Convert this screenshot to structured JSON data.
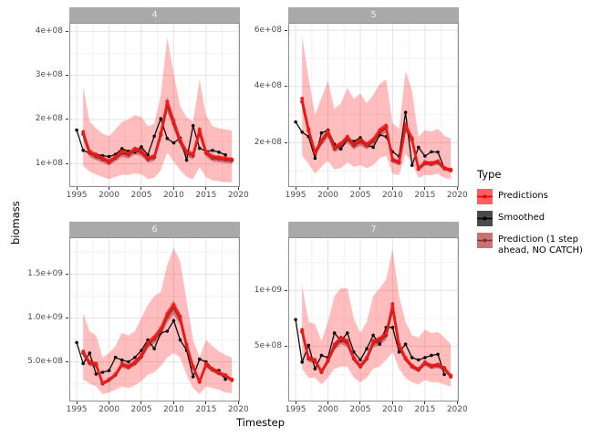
{
  "figure": {
    "ylabel": "biomass",
    "xlabel": "Timestep"
  },
  "style": {
    "background": "#ffffff",
    "panel_border": "#8f8f8f",
    "strip_bg": "#a9a9a9",
    "strip_text": "#ededed",
    "grid_major": "#e3e3e3",
    "grid_minor": "#f2f2f2",
    "tick_color": "#333333",
    "tick_label_color": "#4d4d4d",
    "ribbon_fill": "rgba(255,0,0,0.26)",
    "ribbon2_fill": "rgba(170,22,22,0.45)",
    "predictions_color": "#ff1414",
    "smoothed_color": "#0d0d0d",
    "pred1step_color": "#a12d2d"
  },
  "legend": {
    "title": "Type",
    "entries": [
      {
        "label": "Predictions",
        "fill": "#fb5f5f",
        "line": "#e60000"
      },
      {
        "label": "Smoothed",
        "fill": "#4a4a4a",
        "line": "#000000"
      },
      {
        "label": "Prediction (1 step\n ahead, NO CATCH)",
        "fill": "#c87472",
        "line": "#8b2a2a"
      }
    ]
  },
  "chart_data": [
    {
      "facet": "4",
      "type": "line",
      "xlim": [
        1994.0,
        2020.1
      ],
      "ylim": [
        49000000.0,
        417000000.0
      ],
      "x_ticks": [
        {
          "v": 1995,
          "label": "1995"
        },
        {
          "v": 2000,
          "label": "2000"
        },
        {
          "v": 2005,
          "label": "2005"
        },
        {
          "v": 2010,
          "label": "2010"
        },
        {
          "v": 2015,
          "label": "2015"
        },
        {
          "v": 2020,
          "label": "2020"
        }
      ],
      "y_ticks": [
        {
          "v": 400000000.0,
          "label": "4e+08"
        },
        {
          "v": 300000000.0,
          "label": "3e+08"
        },
        {
          "v": 200000000.0,
          "label": "2e+08"
        },
        {
          "v": 100000000.0,
          "label": "1e+08"
        }
      ],
      "x_minor": [
        1997.5,
        2002.5,
        2007.5,
        2012.5,
        2017.5
      ],
      "y_minor": [
        50000000.0,
        150000000.0,
        250000000.0,
        350000000.0
      ],
      "series": {
        "smoothed": {
          "x_start": 1995,
          "y": [
            176000000.0,
            130000000.0,
            124000000.0,
            121000000.0,
            118000000.0,
            116000000.0,
            121000000.0,
            134000000.0,
            128000000.0,
            126000000.0,
            138000000.0,
            120000000.0,
            162000000.0,
            202000000.0,
            157000000.0,
            147000000.0,
            158000000.0,
            108000000.0,
            186000000.0,
            135000000.0,
            128000000.0,
            130000000.0,
            126000000.0,
            120000000.0
          ]
        },
        "predictions": {
          "x_start": 1996,
          "y": [
            172000000.0,
            128000000.0,
            120000000.0,
            113000000.0,
            106000000.0,
            116000000.0,
            128000000.0,
            124000000.0,
            134000000.0,
            130000000.0,
            113000000.0,
            117000000.0,
            170000000.0,
            241000000.0,
            198000000.0,
            155000000.0,
            128000000.0,
            122000000.0,
            178000000.0,
            128000000.0,
            116000000.0,
            114000000.0,
            112000000.0,
            110000000.0
          ]
        },
        "pred_1step": {
          "x_start": 1996,
          "y": [
            167000000.0,
            124000000.0,
            116000000.0,
            110000000.0,
            103000000.0,
            113000000.0,
            124000000.0,
            120000000.0,
            130000000.0,
            126000000.0,
            110000000.0,
            114000000.0,
            165000000.0,
            234000000.0,
            192000000.0,
            150000000.0,
            124000000.0,
            118000000.0,
            173000000.0,
            124000000.0,
            113000000.0,
            111000000.0,
            109000000.0,
            107000000.0
          ]
        }
      },
      "ribbon": {
        "x_start": 1996,
        "lower": [
          95000000.0,
          82000000.0,
          75000000.0,
          70000000.0,
          65000000.0,
          70000000.0,
          75000000.0,
          74000000.0,
          78000000.0,
          76000000.0,
          65000000.0,
          68000000.0,
          85000000.0,
          125000000.0,
          105000000.0,
          85000000.0,
          70000000.0,
          65000000.0,
          92000000.0,
          70000000.0,
          62000000.0,
          60000000.0,
          58000000.0,
          58000000.0
        ],
        "upper": [
          275000000.0,
          195000000.0,
          180000000.0,
          168000000.0,
          162000000.0,
          178000000.0,
          195000000.0,
          200000000.0,
          210000000.0,
          205000000.0,
          185000000.0,
          190000000.0,
          255000000.0,
          385000000.0,
          305000000.0,
          230000000.0,
          205000000.0,
          195000000.0,
          290000000.0,
          210000000.0,
          185000000.0,
          180000000.0,
          178000000.0,
          175000000.0
        ]
      },
      "ribbon2_halfwidth_fraction": 0.07
    },
    {
      "facet": "5",
      "type": "line",
      "xlim": [
        1994.0,
        2020.1
      ],
      "ylim": [
        46000000.0,
        623000000.0
      ],
      "x_ticks": [
        {
          "v": 1995,
          "label": "1995"
        },
        {
          "v": 2000,
          "label": "2000"
        },
        {
          "v": 2005,
          "label": "2005"
        },
        {
          "v": 2010,
          "label": "2010"
        },
        {
          "v": 2015,
          "label": "2015"
        },
        {
          "v": 2020,
          "label": "2020"
        }
      ],
      "y_ticks": [
        {
          "v": 600000000.0,
          "label": "6e+08"
        },
        {
          "v": 400000000.0,
          "label": "4e+08"
        },
        {
          "v": 200000000.0,
          "label": "2e+08"
        }
      ],
      "x_minor": [
        1997.5,
        2002.5,
        2007.5,
        2012.5,
        2017.5
      ],
      "y_minor": [
        100000000.0,
        300000000.0,
        500000000.0
      ],
      "series": {
        "smoothed": {
          "x_start": 1995,
          "y": [
            274000000.0,
            238000000.0,
            222000000.0,
            145000000.0,
            235000000.0,
            245000000.0,
            195000000.0,
            178000000.0,
            212000000.0,
            205000000.0,
            218000000.0,
            192000000.0,
            184000000.0,
            228000000.0,
            222000000.0,
            168000000.0,
            152000000.0,
            308000000.0,
            120000000.0,
            184000000.0,
            153000000.0,
            168000000.0,
            167000000.0,
            108000000.0
          ]
        },
        "predictions": {
          "x_start": 1996,
          "y": [
            357000000.0,
            250000000.0,
            168000000.0,
            210000000.0,
            242000000.0,
            185000000.0,
            198000000.0,
            222000000.0,
            196000000.0,
            210000000.0,
            196000000.0,
            212000000.0,
            245000000.0,
            261000000.0,
            142000000.0,
            133000000.0,
            265000000.0,
            217000000.0,
            110000000.0,
            132000000.0,
            129000000.0,
            135000000.0,
            112000000.0,
            105000000.0
          ]
        },
        "pred_1step": {
          "x_start": 1996,
          "y": [
            346000000.0,
            243000000.0,
            163000000.0,
            204000000.0,
            235000000.0,
            179000000.0,
            192000000.0,
            215000000.0,
            190000000.0,
            204000000.0,
            190000000.0,
            206000000.0,
            238000000.0,
            253000000.0,
            138000000.0,
            129000000.0,
            257000000.0,
            211000000.0,
            107000000.0,
            128000000.0,
            125000000.0,
            131000000.0,
            109000000.0,
            102000000.0
          ]
        }
      },
      "ribbon": {
        "x_start": 1996,
        "lower": [
          155000000.0,
          125000000.0,
          90000000.0,
          115000000.0,
          135000000.0,
          105000000.0,
          110000000.0,
          130000000.0,
          115000000.0,
          120000000.0,
          110000000.0,
          120000000.0,
          145000000.0,
          155000000.0,
          90000000.0,
          85000000.0,
          160000000.0,
          130000000.0,
          75000000.0,
          85000000.0,
          85000000.0,
          90000000.0,
          75000000.0,
          70000000.0
        ],
        "upper": [
          580000000.0,
          430000000.0,
          300000000.0,
          360000000.0,
          420000000.0,
          320000000.0,
          340000000.0,
          395000000.0,
          355000000.0,
          375000000.0,
          340000000.0,
          370000000.0,
          410000000.0,
          425000000.0,
          270000000.0,
          250000000.0,
          455000000.0,
          385000000.0,
          220000000.0,
          245000000.0,
          240000000.0,
          250000000.0,
          225000000.0,
          215000000.0
        ]
      },
      "ribbon2_halfwidth_fraction": 0.07
    },
    {
      "facet": "6",
      "type": "line",
      "xlim": [
        1994.0,
        2020.1
      ],
      "ylim": [
        57000000.0,
        1912000000.0
      ],
      "x_ticks": [
        {
          "v": 1995,
          "label": "1995"
        },
        {
          "v": 2000,
          "label": "2000"
        },
        {
          "v": 2005,
          "label": "2005"
        },
        {
          "v": 2010,
          "label": "2010"
        },
        {
          "v": 2015,
          "label": "2015"
        },
        {
          "v": 2020,
          "label": "2020"
        }
      ],
      "y_ticks": [
        {
          "v": 1500000000.0,
          "label": "1.5e+09"
        },
        {
          "v": 1000000000.0,
          "label": "1.0e+09"
        },
        {
          "v": 500000000.0,
          "label": "5.0e+08"
        }
      ],
      "x_minor": [
        1997.5,
        2002.5,
        2007.5,
        2012.5,
        2017.5
      ],
      "y_minor": [
        250000000.0,
        750000000.0,
        1250000000.0,
        1750000000.0
      ],
      "series": {
        "smoothed": {
          "x_start": 1995,
          "y": [
            720000000.0,
            480000000.0,
            600000000.0,
            360000000.0,
            380000000.0,
            400000000.0,
            550000000.0,
            520000000.0,
            500000000.0,
            550000000.0,
            630000000.0,
            750000000.0,
            650000000.0,
            830000000.0,
            850000000.0,
            970000000.0,
            750000000.0,
            630000000.0,
            330000000.0,
            530000000.0,
            500000000.0,
            420000000.0,
            400000000.0,
            300000000.0
          ]
        },
        "predictions": {
          "x_start": 1996,
          "y": [
            620000000.0,
            500000000.0,
            480000000.0,
            260000000.0,
            300000000.0,
            360000000.0,
            480000000.0,
            450000000.0,
            500000000.0,
            580000000.0,
            720000000.0,
            780000000.0,
            880000000.0,
            1050000000.0,
            1150000000.0,
            1020000000.0,
            700000000.0,
            450000000.0,
            280000000.0,
            480000000.0,
            420000000.0,
            380000000.0,
            350000000.0,
            300000000.0
          ]
        },
        "pred_1step": {
          "x_start": 1996,
          "y": [
            600000000.0,
            485000000.0,
            465000000.0,
            250000000.0,
            290000000.0,
            350000000.0,
            465000000.0,
            440000000.0,
            485000000.0,
            560000000.0,
            700000000.0,
            760000000.0,
            850000000.0,
            1020000000.0,
            1120000000.0,
            990000000.0,
            680000000.0,
            440000000.0,
            270000000.0,
            465000000.0,
            410000000.0,
            370000000.0,
            340000000.0,
            290000000.0
          ]
        }
      },
      "ribbon": {
        "x_start": 1996,
        "lower": [
          300000000.0,
          250000000.0,
          220000000.0,
          130000000.0,
          150000000.0,
          180000000.0,
          220000000.0,
          200000000.0,
          230000000.0,
          280000000.0,
          350000000.0,
          380000000.0,
          450000000.0,
          550000000.0,
          600000000.0,
          550000000.0,
          350000000.0,
          200000000.0,
          130000000.0,
          220000000.0,
          200000000.0,
          180000000.0,
          150000000.0,
          140000000.0
        ],
        "upper": [
          1050000000.0,
          850000000.0,
          800000000.0,
          550000000.0,
          600000000.0,
          680000000.0,
          830000000.0,
          800000000.0,
          850000000.0,
          1000000000.0,
          1150000000.0,
          1250000000.0,
          1300000000.0,
          1600000000.0,
          1800000000.0,
          1650000000.0,
          1200000000.0,
          750000000.0,
          550000000.0,
          750000000.0,
          680000000.0,
          620000000.0,
          580000000.0,
          550000000.0
        ]
      },
      "ribbon2_halfwidth_fraction": 0.07
    },
    {
      "facet": "7",
      "type": "line",
      "xlim": [
        1994.0,
        2020.1
      ],
      "ylim": [
        16000000.0,
        1468000000.0
      ],
      "x_ticks": [
        {
          "v": 1995,
          "label": "1995"
        },
        {
          "v": 2000,
          "label": "2000"
        },
        {
          "v": 2005,
          "label": "2005"
        },
        {
          "v": 2010,
          "label": "2010"
        },
        {
          "v": 2015,
          "label": "2015"
        },
        {
          "v": 2020,
          "label": "2020"
        }
      ],
      "y_ticks": [
        {
          "v": 1000000000.0,
          "label": "1e+09"
        },
        {
          "v": 500000000.0,
          "label": "5e+08"
        }
      ],
      "x_minor": [
        1997.5,
        2002.5,
        2007.5,
        2012.5,
        2017.5
      ],
      "y_minor": [
        250000000.0,
        750000000.0,
        1250000000.0
      ],
      "series": {
        "smoothed": {
          "x_start": 1995,
          "y": [
            740000000.0,
            360000000.0,
            510000000.0,
            300000000.0,
            420000000.0,
            400000000.0,
            620000000.0,
            550000000.0,
            620000000.0,
            450000000.0,
            380000000.0,
            480000000.0,
            600000000.0,
            520000000.0,
            670000000.0,
            670000000.0,
            450000000.0,
            520000000.0,
            400000000.0,
            380000000.0,
            400000000.0,
            420000000.0,
            430000000.0,
            250000000.0
          ]
        },
        "predictions": {
          "x_start": 1996,
          "y": [
            650000000.0,
            400000000.0,
            380000000.0,
            280000000.0,
            380000000.0,
            520000000.0,
            580000000.0,
            550000000.0,
            400000000.0,
            330000000.0,
            400000000.0,
            550000000.0,
            570000000.0,
            620000000.0,
            880000000.0,
            520000000.0,
            400000000.0,
            330000000.0,
            300000000.0,
            360000000.0,
            330000000.0,
            340000000.0,
            310000000.0,
            240000000.0
          ]
        },
        "pred_1step": {
          "x_start": 1996,
          "y": [
            630000000.0,
            390000000.0,
            370000000.0,
            270000000.0,
            370000000.0,
            500000000.0,
            560000000.0,
            530000000.0,
            390000000.0,
            320000000.0,
            390000000.0,
            530000000.0,
            550000000.0,
            600000000.0,
            850000000.0,
            500000000.0,
            390000000.0,
            320000000.0,
            290000000.0,
            350000000.0,
            320000000.0,
            330000000.0,
            300000000.0,
            230000000.0
          ]
        }
      },
      "ribbon": {
        "x_start": 1996,
        "lower": [
          300000000.0,
          220000000.0,
          220000000.0,
          160000000.0,
          220000000.0,
          300000000.0,
          320000000.0,
          320000000.0,
          220000000.0,
          180000000.0,
          220000000.0,
          300000000.0,
          320000000.0,
          380000000.0,
          450000000.0,
          300000000.0,
          220000000.0,
          180000000.0,
          160000000.0,
          200000000.0,
          180000000.0,
          180000000.0,
          160000000.0,
          140000000.0
        ],
        "upper": [
          1050000000.0,
          720000000.0,
          700000000.0,
          550000000.0,
          720000000.0,
          950000000.0,
          1020000000.0,
          1020000000.0,
          750000000.0,
          620000000.0,
          720000000.0,
          950000000.0,
          1020000000.0,
          1100000000.0,
          1370000000.0,
          950000000.0,
          720000000.0,
          600000000.0,
          580000000.0,
          650000000.0,
          620000000.0,
          630000000.0,
          580000000.0,
          520000000.0
        ]
      },
      "ribbon2_halfwidth_fraction": 0.07
    }
  ]
}
